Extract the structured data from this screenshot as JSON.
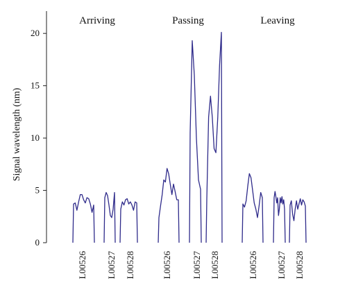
{
  "chart_data": {
    "type": "line",
    "ylabel": "Signal wavelength (nm)",
    "ylim": [
      0,
      22
    ],
    "yticks": [
      0,
      5,
      10,
      15,
      20
    ],
    "groups": [
      {
        "label": "Arriving",
        "segments": [
          {
            "category": "L00526",
            "y": [
              0,
              3.7,
              3.8,
              3.1,
              3.9,
              4.6,
              4.6,
              4.1,
              3.8,
              4.3,
              4.2,
              3.7,
              2.9,
              3.6,
              0
            ]
          },
          {
            "category": "L00527",
            "y": [
              0,
              4.3,
              4.8,
              4.5,
              3.6,
              2.6,
              2.4,
              3.2,
              4.8,
              0
            ]
          },
          {
            "category": "L00528",
            "y": [
              0,
              3.2,
              3.9,
              3.6,
              4.1,
              4.2,
              3.7,
              3.9,
              3.6,
              3.1,
              3.9,
              3.8,
              0
            ]
          }
        ]
      },
      {
        "label": "Passing",
        "segments": [
          {
            "category": "L00526",
            "y": [
              0,
              2.4,
              3.5,
              4.6,
              6.0,
              5.8,
              7.1,
              6.6,
              5.6,
              4.6,
              5.6,
              4.9,
              4.1,
              4.1,
              0
            ]
          },
          {
            "category": "L00527",
            "y": [
              0,
              10.5,
              19.3,
              16.0,
              10.0,
              6.0,
              5.1,
              0
            ]
          },
          {
            "category": "L00528",
            "y": [
              0,
              4.2,
              12.0,
              14.0,
              12.0,
              9.0,
              8.6,
              12.0,
              17.0,
              20.1,
              0
            ]
          }
        ]
      },
      {
        "label": "Leaving",
        "segments": [
          {
            "category": "L00526",
            "y": [
              0,
              3.7,
              3.4,
              4.0,
              5.4,
              6.6,
              6.2,
              5.0,
              3.8,
              3.2,
              2.4,
              3.5,
              4.8,
              4.3,
              0
            ]
          },
          {
            "category": "L00527",
            "y": [
              0,
              4.3,
              4.9,
              4.4,
              3.8,
              4.3,
              2.6,
              3.2,
              4.3,
              3.8,
              4.4,
              3.7,
              4.1,
              3.2,
              0
            ]
          },
          {
            "category": "L00528",
            "y": [
              0,
              3.6,
              4.0,
              2.7,
              2.1,
              3.2,
              4.0,
              3.2,
              3.7,
              4.2,
              3.6,
              4.1,
              3.9,
              3.5,
              0
            ]
          }
        ]
      }
    ]
  }
}
